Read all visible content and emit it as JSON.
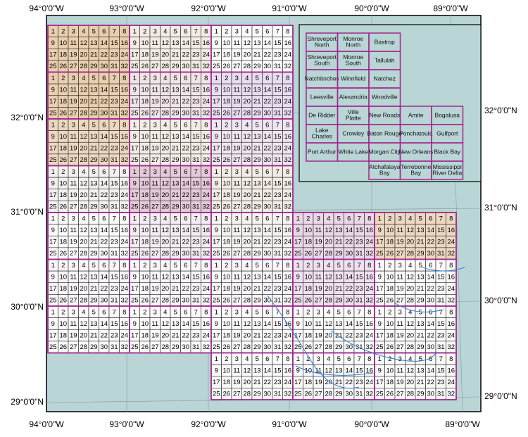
{
  "map": {
    "top_lon_labels": [
      "94°0'0\"W",
      "93°0'0\"W",
      "92°0'0\"W",
      "91°0'0\"W",
      "90°0'0\"W",
      "89°0'0\"W"
    ],
    "bottom_lon_labels": [
      "94°0'0\"W",
      "93°0'0\"W",
      "92°0'0\"W",
      "91°0'0\"W",
      "90°0'0\"W",
      "89°0'0\"W"
    ],
    "left_lat_labels": [
      "32°0'0\"N",
      "31°0'0\"N",
      "30°0'0\"N",
      "29°0'0\"N"
    ],
    "right_lat_labels": [
      "32°0'0\"N",
      "31°0'0\"N",
      "30°0'0\"N",
      "29°0'0\"N"
    ],
    "cell_numbers": [
      1,
      2,
      3,
      4,
      5,
      6,
      7,
      8,
      9,
      10,
      11,
      12,
      13,
      14,
      15,
      16,
      17,
      18,
      19,
      20,
      21,
      22,
      23,
      24,
      25,
      26,
      27,
      28,
      29,
      30,
      31,
      32
    ],
    "index_map": {
      "quadrangles": [
        "Shreveport North",
        "Monroe North",
        "Bastrop",
        "Shreveport South",
        "Monroe South",
        "Tallulah",
        "Natchitoches",
        "Winnfield",
        "Natchez",
        "Leesville",
        "Alexandria",
        "Woodville",
        "De Ridder",
        "Ville Platte",
        "New Roads",
        "Amite",
        "Bogalusa",
        "Lake Charles",
        "Crowley",
        "Baton Rouge",
        "Ponchatoula",
        "Gulfport",
        "Port Arthur",
        "White Lake",
        "Morgan City",
        "New Orleans",
        "Black Bay",
        "Atchafalaya Bay",
        "Terrebonne Bay",
        "Mississippi River Delta"
      ]
    }
  }
}
